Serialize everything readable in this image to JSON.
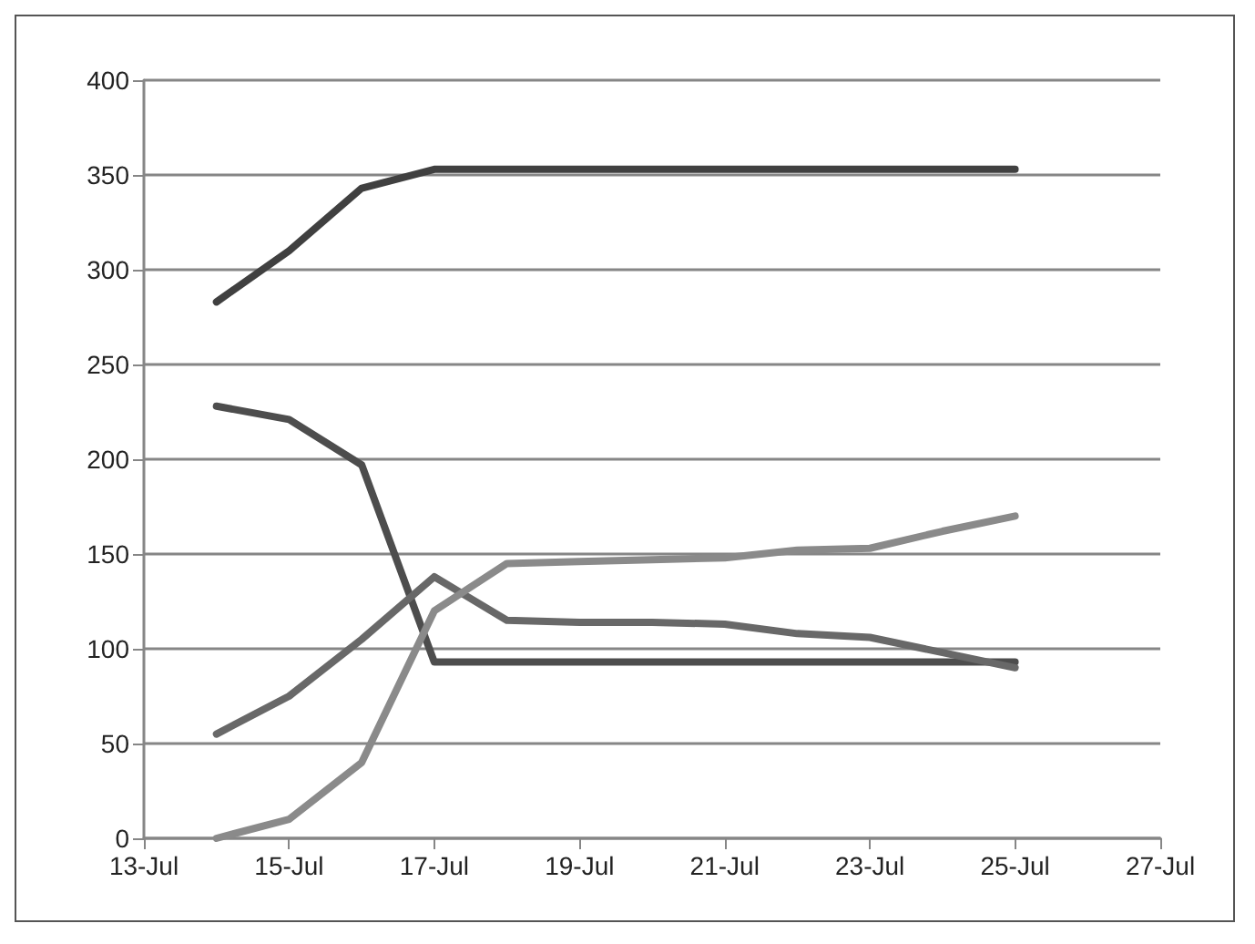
{
  "chart_data": {
    "type": "line",
    "x": [
      "--07-14",
      "--07-15",
      "--07-16",
      "--07-17",
      "--07-18",
      "--07-19",
      "--07-20",
      "--07-21",
      "--07-22",
      "--07-23",
      "--07-24",
      "--07-25"
    ],
    "series": [
      {
        "color": "#404040",
        "values": [
          283,
          310,
          343,
          353,
          353,
          353,
          353,
          353,
          353,
          353,
          353,
          353
        ]
      },
      {
        "color": "#4d4d4d",
        "values": [
          228,
          221,
          197,
          93,
          93,
          93,
          93,
          93,
          93,
          93,
          93,
          93
        ]
      },
      {
        "color": "#686868",
        "values": [
          55,
          75,
          105,
          138,
          115,
          114,
          114,
          113,
          108,
          106,
          98,
          90
        ]
      },
      {
        "color": "#8a8a8a",
        "values": [
          0,
          10,
          40,
          120,
          145,
          146,
          147,
          148,
          152,
          153,
          162,
          170
        ]
      }
    ],
    "xlim": [
      "--07-13",
      "--07-27"
    ],
    "xticks": [
      {
        "value": "--07-13",
        "label": "13-Jul"
      },
      {
        "value": "--07-15",
        "label": "15-Jul"
      },
      {
        "value": "--07-17",
        "label": "17-Jul"
      },
      {
        "value": "--07-19",
        "label": "19-Jul"
      },
      {
        "value": "--07-21",
        "label": "21-Jul"
      },
      {
        "value": "--07-23",
        "label": "23-Jul"
      },
      {
        "value": "--07-25",
        "label": "25-Jul"
      },
      {
        "value": "--07-27",
        "label": "27-Jul"
      }
    ],
    "ylim": [
      0,
      400
    ],
    "yticks": [
      0,
      50,
      100,
      150,
      200,
      250,
      300,
      350,
      400
    ],
    "grid": "y",
    "marker": "none",
    "line_style": "solid"
  }
}
